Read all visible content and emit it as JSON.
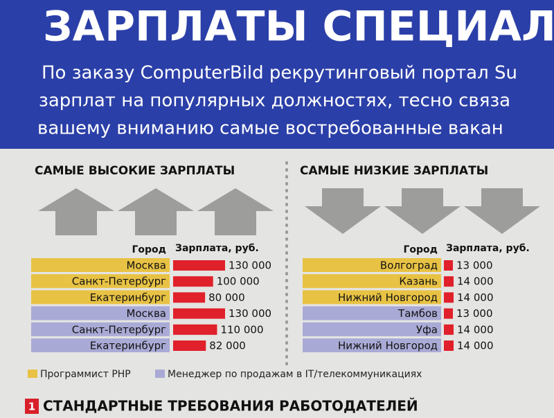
{
  "header": {
    "title": "ЗАРПЛАТЫ СПЕЦИАЛ",
    "lines": [
      "По заказу ComputerBild рекрутинговый портал Su",
      "зарплат на популярных должностях, тесно связа",
      "вашему вниманию самые востребованные вакан"
    ]
  },
  "chart_data": [
    {
      "type": "bar",
      "title": "САМЫЕ ВЫСОКИЕ ЗАРПЛАТЫ",
      "category_header": "Город",
      "value_header": "Зарплата, руб.",
      "bar_color": "#e0202a",
      "series": [
        {
          "color": "#e8c244",
          "categories": [
            "Москва",
            "Санкт-Петербург",
            "Екатеринбург"
          ],
          "values": [
            130000,
            100000,
            80000
          ],
          "value_labels": [
            "130 000",
            "100 000",
            "80 000"
          ]
        },
        {
          "color": "#aaaad6",
          "categories": [
            "Москва",
            "Санкт-Петербург",
            "Екатеринбург"
          ],
          "values": [
            130000,
            110000,
            82000
          ],
          "value_labels": [
            "130 000",
            "110 000",
            "82 000"
          ]
        }
      ]
    },
    {
      "type": "bar",
      "title": "САМЫЕ НИЗКИЕ ЗАРПЛАТЫ",
      "category_header": "Город",
      "value_header": "Зарплата, руб.",
      "bar_color": "#e0202a",
      "series": [
        {
          "color": "#e8c244",
          "categories": [
            "Волгоград",
            "Казань",
            "Нижний Новгород"
          ],
          "values": [
            13000,
            14000,
            14000
          ],
          "value_labels": [
            "13 000",
            "14 000",
            "14 000"
          ]
        },
        {
          "color": "#aaaad6",
          "categories": [
            "Тамбов",
            "Уфа",
            "Нижний Новгород"
          ],
          "values": [
            13000,
            14000,
            14000
          ],
          "value_labels": [
            "13 000",
            "14 000",
            "14 000"
          ]
        }
      ]
    }
  ],
  "legend": [
    {
      "label": "Программист PHP",
      "color": "#e8c244"
    },
    {
      "label": "Менеджер по продажам в IT/телекоммуникациях",
      "color": "#aaaad6"
    }
  ],
  "section": {
    "number": "1",
    "title": "СТАНДАРТНЫЕ ТРЕБОВАНИЯ РАБОТОДАТЕЛЕЙ"
  }
}
